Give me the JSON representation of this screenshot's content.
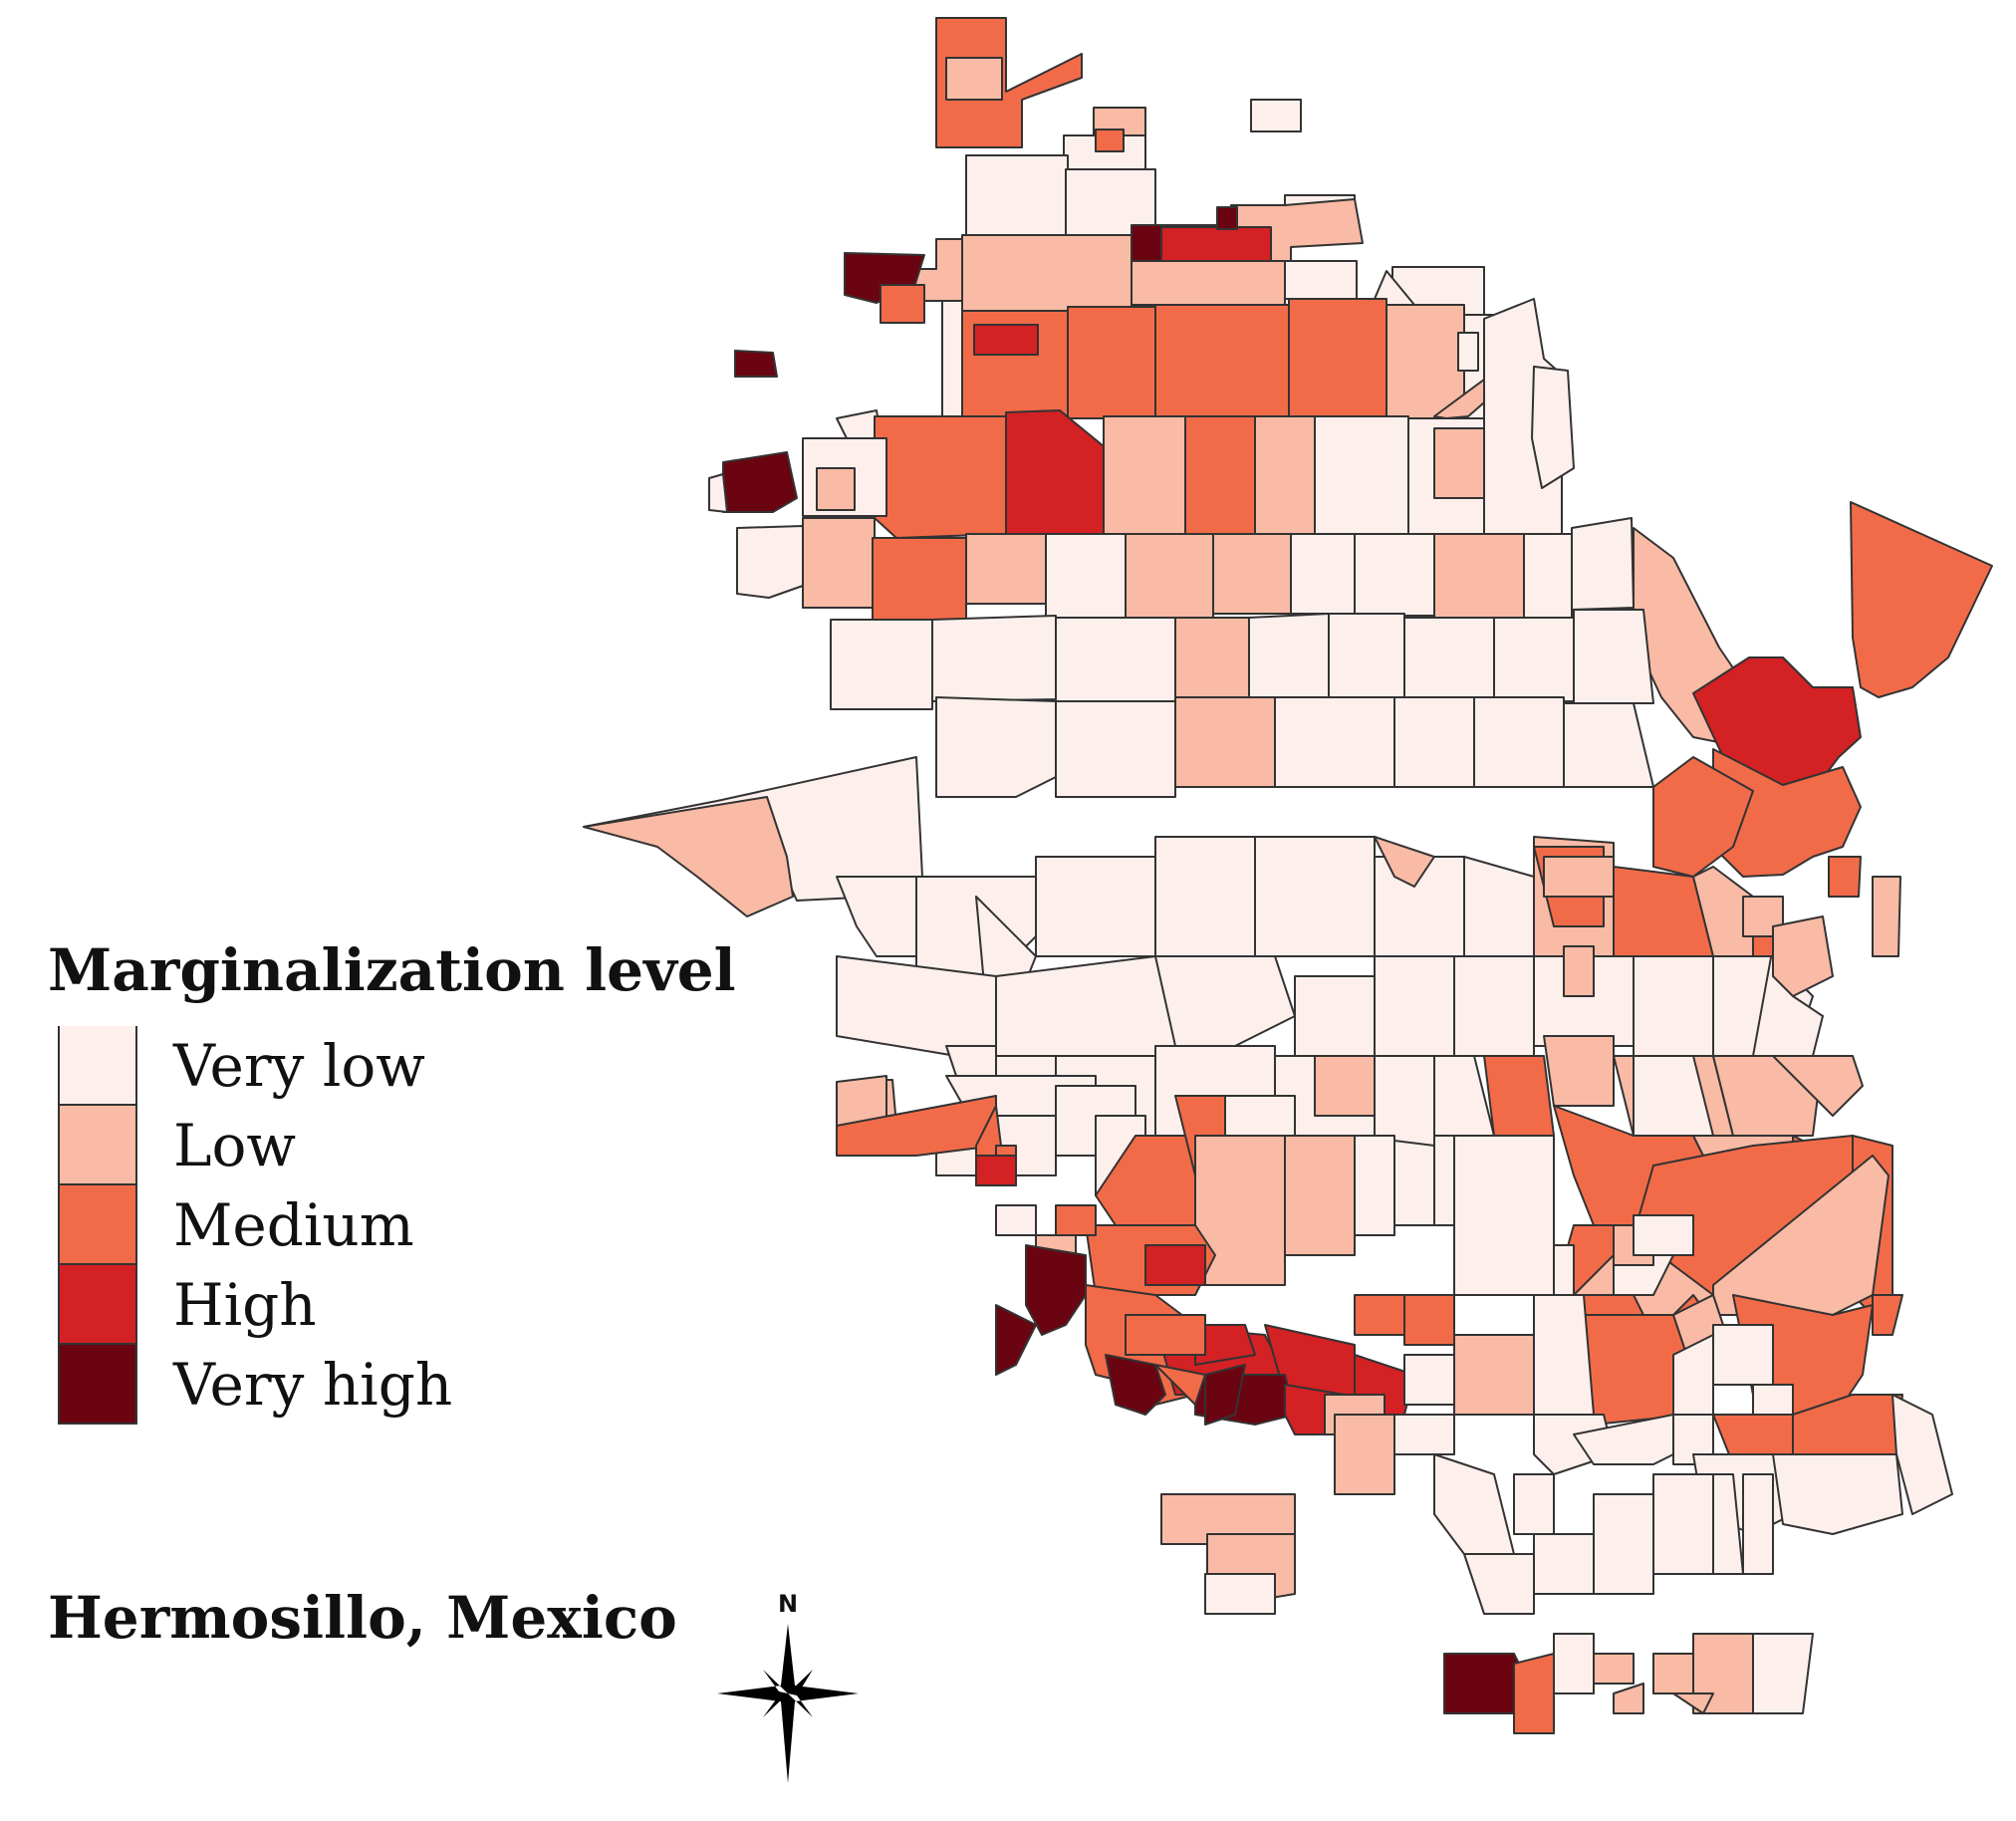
{
  "legend": {
    "title": "Marginalization level",
    "classes": [
      {
        "label": "Very low",
        "color": "#fdf0ec"
      },
      {
        "label": "Low",
        "color": "#f9bba5"
      },
      {
        "label": "Medium",
        "color": "#f26b49"
      },
      {
        "label": "High",
        "color": "#d32124"
      },
      {
        "label": "Very high",
        "color": "#6b0411"
      }
    ]
  },
  "place_name": "Hermosillo, Mexico",
  "north_arrow": {
    "label": "N",
    "icon": "compass-star-icon"
  },
  "stroke_color": "#333333"
}
